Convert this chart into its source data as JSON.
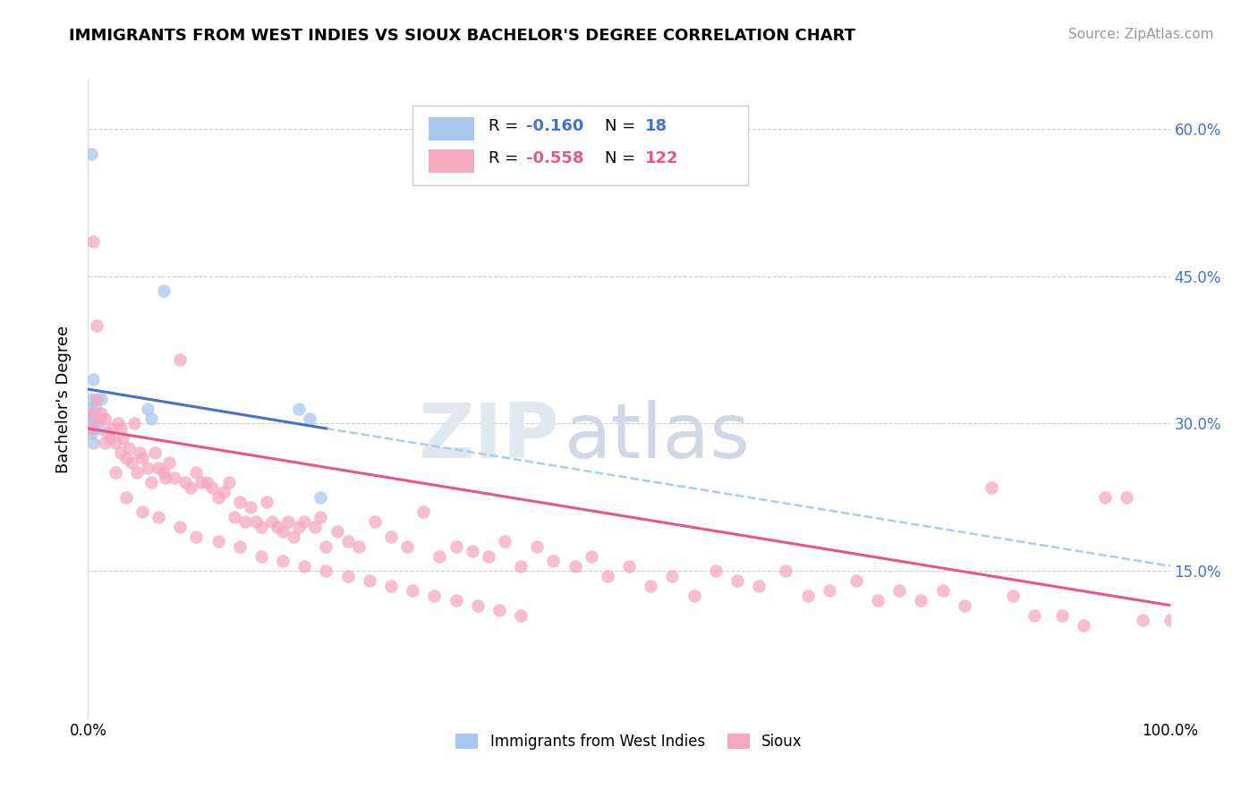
{
  "title": "IMMIGRANTS FROM WEST INDIES VS SIOUX BACHELOR'S DEGREE CORRELATION CHART",
  "source": "Source: ZipAtlas.com",
  "ylabel": "Bachelor's Degree",
  "xlim": [
    0.0,
    1.0
  ],
  "ylim": [
    0.0,
    0.65
  ],
  "ytick_vals": [
    0.0,
    0.15,
    0.3,
    0.45,
    0.6
  ],
  "xtick_labels": [
    "0.0%",
    "100.0%"
  ],
  "xtick_vals": [
    0.0,
    1.0
  ],
  "right_ytick_labels": [
    "15.0%",
    "30.0%",
    "45.0%",
    "60.0%"
  ],
  "right_ytick_vals": [
    0.15,
    0.3,
    0.45,
    0.6
  ],
  "color_blue": "#A8C8F0",
  "color_pink": "#F5A8C0",
  "line_blue": "#4472C4",
  "line_pink": "#E8558A",
  "line_dashed_color": "#AACCEE",
  "background_color": "#FFFFFF",
  "grid_color": "#CCCCCC",
  "blue_x": [
    0.003,
    0.003,
    0.003,
    0.003,
    0.003,
    0.005,
    0.005,
    0.005,
    0.005,
    0.007,
    0.01,
    0.012,
    0.055,
    0.058,
    0.07,
    0.195,
    0.205,
    0.215
  ],
  "blue_y": [
    0.575,
    0.325,
    0.315,
    0.305,
    0.29,
    0.345,
    0.305,
    0.295,
    0.28,
    0.315,
    0.295,
    0.325,
    0.315,
    0.305,
    0.435,
    0.315,
    0.305,
    0.225
  ],
  "pink_x": [
    0.003,
    0.005,
    0.008,
    0.008,
    0.01,
    0.012,
    0.015,
    0.018,
    0.02,
    0.022,
    0.025,
    0.028,
    0.03,
    0.03,
    0.032,
    0.035,
    0.038,
    0.04,
    0.043,
    0.045,
    0.048,
    0.05,
    0.055,
    0.058,
    0.062,
    0.065,
    0.07,
    0.072,
    0.075,
    0.08,
    0.085,
    0.09,
    0.095,
    0.1,
    0.105,
    0.11,
    0.115,
    0.12,
    0.125,
    0.13,
    0.135,
    0.14,
    0.145,
    0.15,
    0.155,
    0.16,
    0.165,
    0.17,
    0.175,
    0.18,
    0.185,
    0.19,
    0.195,
    0.2,
    0.21,
    0.215,
    0.22,
    0.23,
    0.24,
    0.25,
    0.265,
    0.28,
    0.295,
    0.31,
    0.325,
    0.34,
    0.355,
    0.37,
    0.385,
    0.4,
    0.415,
    0.43,
    0.45,
    0.465,
    0.48,
    0.5,
    0.52,
    0.54,
    0.56,
    0.58,
    0.6,
    0.62,
    0.645,
    0.665,
    0.685,
    0.71,
    0.73,
    0.75,
    0.77,
    0.79,
    0.81,
    0.835,
    0.855,
    0.875,
    0.9,
    0.92,
    0.94,
    0.96,
    0.975,
    1.0,
    0.005,
    0.015,
    0.025,
    0.035,
    0.05,
    0.065,
    0.085,
    0.1,
    0.12,
    0.14,
    0.16,
    0.18,
    0.2,
    0.22,
    0.24,
    0.26,
    0.28,
    0.3,
    0.32,
    0.34,
    0.36,
    0.38,
    0.4
  ],
  "pink_y": [
    0.295,
    0.485,
    0.4,
    0.325,
    0.305,
    0.31,
    0.305,
    0.29,
    0.285,
    0.295,
    0.28,
    0.3,
    0.295,
    0.27,
    0.285,
    0.265,
    0.275,
    0.26,
    0.3,
    0.25,
    0.27,
    0.265,
    0.255,
    0.24,
    0.27,
    0.255,
    0.25,
    0.245,
    0.26,
    0.245,
    0.365,
    0.24,
    0.235,
    0.25,
    0.24,
    0.24,
    0.235,
    0.225,
    0.23,
    0.24,
    0.205,
    0.22,
    0.2,
    0.215,
    0.2,
    0.195,
    0.22,
    0.2,
    0.195,
    0.19,
    0.2,
    0.185,
    0.195,
    0.2,
    0.195,
    0.205,
    0.175,
    0.19,
    0.18,
    0.175,
    0.2,
    0.185,
    0.175,
    0.21,
    0.165,
    0.175,
    0.17,
    0.165,
    0.18,
    0.155,
    0.175,
    0.16,
    0.155,
    0.165,
    0.145,
    0.155,
    0.135,
    0.145,
    0.125,
    0.15,
    0.14,
    0.135,
    0.15,
    0.125,
    0.13,
    0.14,
    0.12,
    0.13,
    0.12,
    0.13,
    0.115,
    0.235,
    0.125,
    0.105,
    0.105,
    0.095,
    0.225,
    0.225,
    0.1,
    0.1,
    0.31,
    0.28,
    0.25,
    0.225,
    0.21,
    0.205,
    0.195,
    0.185,
    0.18,
    0.175,
    0.165,
    0.16,
    0.155,
    0.15,
    0.145,
    0.14,
    0.135,
    0.13,
    0.125,
    0.12,
    0.115,
    0.11,
    0.105
  ],
  "blue_line_x0": 0.0,
  "blue_line_x1": 0.22,
  "blue_line_y0": 0.335,
  "blue_line_y1": 0.295,
  "pink_line_x0": 0.0,
  "pink_line_x1": 1.0,
  "pink_line_y0": 0.295,
  "pink_line_y1": 0.115,
  "dash_line_x0": 0.22,
  "dash_line_x1": 1.0,
  "dash_line_y0": 0.295,
  "dash_line_y1": 0.155
}
